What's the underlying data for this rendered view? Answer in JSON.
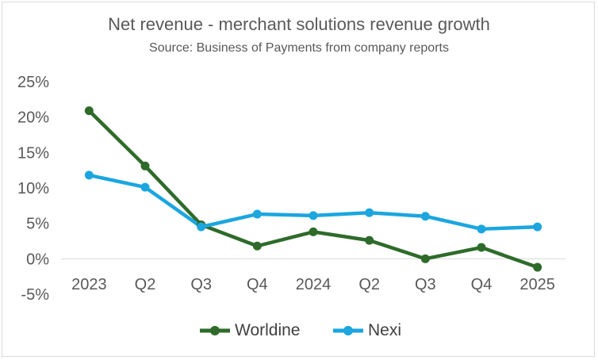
{
  "chart_data": {
    "type": "line",
    "title": "Net revenue - merchant solutions revenue growth",
    "subtitle": "Source: Business of Payments from company reports",
    "categories": [
      "2023",
      "Q2",
      "Q3",
      "Q4",
      "2024",
      "Q2",
      "Q3",
      "Q4",
      "2025"
    ],
    "series": [
      {
        "name": "Worldine",
        "color": "#2e6b2a",
        "values": [
          20.9,
          13.1,
          4.8,
          1.8,
          3.8,
          2.6,
          0.0,
          1.6,
          -1.2
        ]
      },
      {
        "name": "Nexi",
        "color": "#1ba6df",
        "values": [
          11.8,
          10.1,
          4.5,
          6.3,
          6.1,
          6.5,
          6.0,
          4.2,
          4.5
        ]
      }
    ],
    "ylim": [
      -5,
      25
    ],
    "yticks": [
      25,
      20,
      15,
      10,
      5,
      0,
      -5
    ],
    "ytick_labels": [
      "25%",
      "20%",
      "15%",
      "10%",
      "5%",
      "0%",
      "-5%"
    ],
    "grid": false,
    "legend_position": "bottom"
  }
}
